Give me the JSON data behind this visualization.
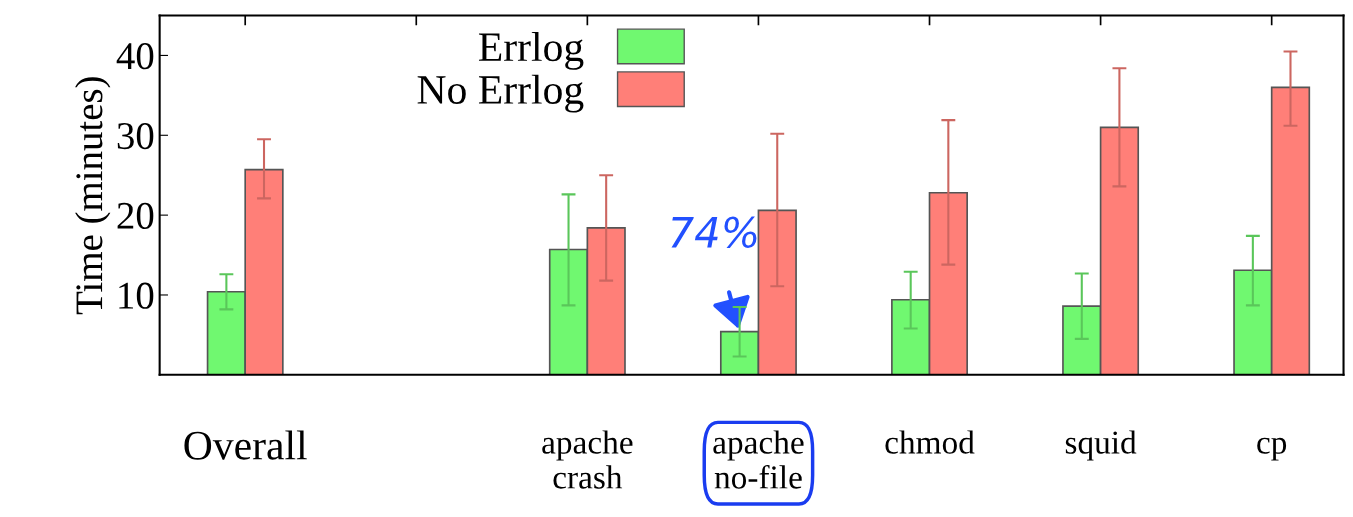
{
  "chart_data": {
    "type": "bar",
    "ylabel": "Time (minutes)",
    "categories": [
      "Overall",
      null,
      "apache\ncrash",
      "apache\nno-file",
      "chmod",
      "squid",
      "cp"
    ],
    "series": [
      {
        "name": "Errlog",
        "color": "#70f870",
        "values": [
          10.4,
          null,
          15.7,
          5.4,
          9.4,
          8.6,
          13.1
        ],
        "errors": [
          [
            8.2,
            12.6
          ],
          null,
          [
            8.7,
            22.6
          ],
          [
            2.3,
            8.5
          ],
          [
            5.8,
            12.9
          ],
          [
            4.5,
            12.7
          ],
          [
            8.7,
            17.4
          ]
        ]
      },
      {
        "name": "No Errlog",
        "color": "#ff7f78",
        "values": [
          25.7,
          null,
          18.4,
          20.6,
          22.8,
          31.0,
          36.0
        ],
        "errors": [
          [
            22.1,
            29.5
          ],
          null,
          [
            11.8,
            25.0
          ],
          [
            11.1,
            30.2
          ],
          [
            13.8,
            31.9
          ],
          [
            23.6,
            38.4
          ],
          [
            31.2,
            40.5
          ]
        ]
      }
    ],
    "ylim": [
      0,
      45
    ],
    "yticks": [
      10,
      20,
      30,
      40
    ],
    "grid": false,
    "legend": "top",
    "annotations": [
      {
        "text": "74%",
        "x": "apache\nno-file",
        "y": 5.4
      }
    ]
  }
}
